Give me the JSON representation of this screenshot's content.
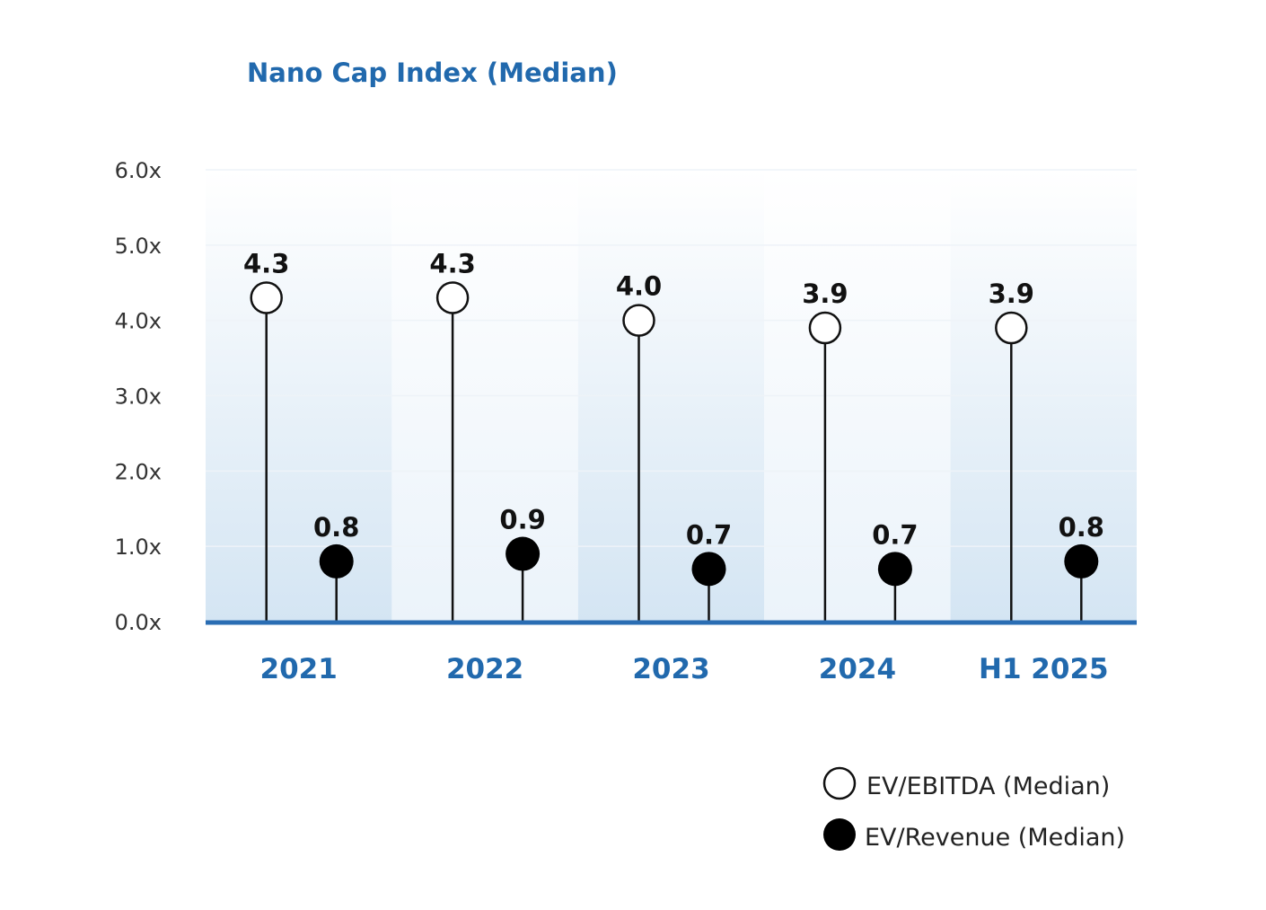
{
  "chart_data": {
    "type": "lollipop",
    "title": "Nano Cap Index (Median)",
    "categories": [
      "2021",
      "2022",
      "2023",
      "2024",
      "H1 2025"
    ],
    "series": [
      {
        "name": "EV/EBITDA (Median)",
        "marker": "hollow-circle",
        "values": [
          4.3,
          4.3,
          4.0,
          3.9,
          3.9
        ],
        "labels": [
          "4.3",
          "4.3",
          "4.0",
          "3.9",
          "3.9"
        ]
      },
      {
        "name": "EV/Revenue (Median)",
        "marker": "filled-circle",
        "values": [
          0.8,
          0.9,
          0.7,
          0.7,
          0.8
        ],
        "labels": [
          "0.8",
          "0.9",
          "0.7",
          "0.7",
          "0.8"
        ]
      }
    ],
    "y_ticks": [
      "0.0x",
      "1.0x",
      "2.0x",
      "3.0x",
      "4.0x",
      "5.0x",
      "6.0x"
    ],
    "ylim": [
      0,
      6
    ],
    "grid": true,
    "legend_position": "bottom-right",
    "colors": {
      "title": "#2169ad",
      "category_labels": "#2169ad",
      "baseline": "#2a6db3",
      "band_top": "#ffffff",
      "band_bottom_dark": "#d4e5f3",
      "band_bottom_light": "#ebf3fa",
      "stem": "#111111",
      "marker_fill_filled": "#000000",
      "marker_fill_hollow": "#ffffff",
      "marker_stroke": "#111111"
    }
  }
}
